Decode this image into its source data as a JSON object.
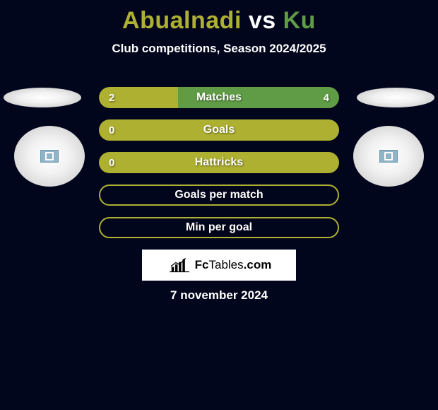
{
  "title": {
    "player1": "Abualnadi",
    "vs": "vs",
    "player2": "Ku",
    "player1_color": "#aeb032",
    "vs_color": "#ffffff",
    "player2_color": "#5f9c45"
  },
  "subtitle": "Club competitions, Season 2024/2025",
  "background_color": "#02061c",
  "player1_accent": "#aeb032",
  "player2_accent": "#5f9c45",
  "stats": [
    {
      "label": "Matches",
      "left_value": "2",
      "right_value": "4",
      "left_pct": 33,
      "right_pct": 67,
      "mode": "split",
      "left_fill": "#aeb032",
      "right_fill": "#5f9c45"
    },
    {
      "label": "Goals",
      "left_value": "0",
      "right_value": "",
      "left_pct": 100,
      "right_pct": 0,
      "mode": "full",
      "fill": "#aeb032"
    },
    {
      "label": "Hattricks",
      "left_value": "0",
      "right_value": "",
      "left_pct": 100,
      "right_pct": 0,
      "mode": "full",
      "fill": "#aeb032"
    },
    {
      "label": "Goals per match",
      "left_value": "",
      "right_value": "",
      "mode": "border",
      "border_color": "#aeb032"
    },
    {
      "label": "Min per goal",
      "left_value": "",
      "right_value": "",
      "mode": "border",
      "border_color": "#aeb032"
    }
  ],
  "brand": {
    "name_bold": "Fc",
    "name_light": "Tables",
    "name_suffix": ".com"
  },
  "date": "7 november 2024"
}
